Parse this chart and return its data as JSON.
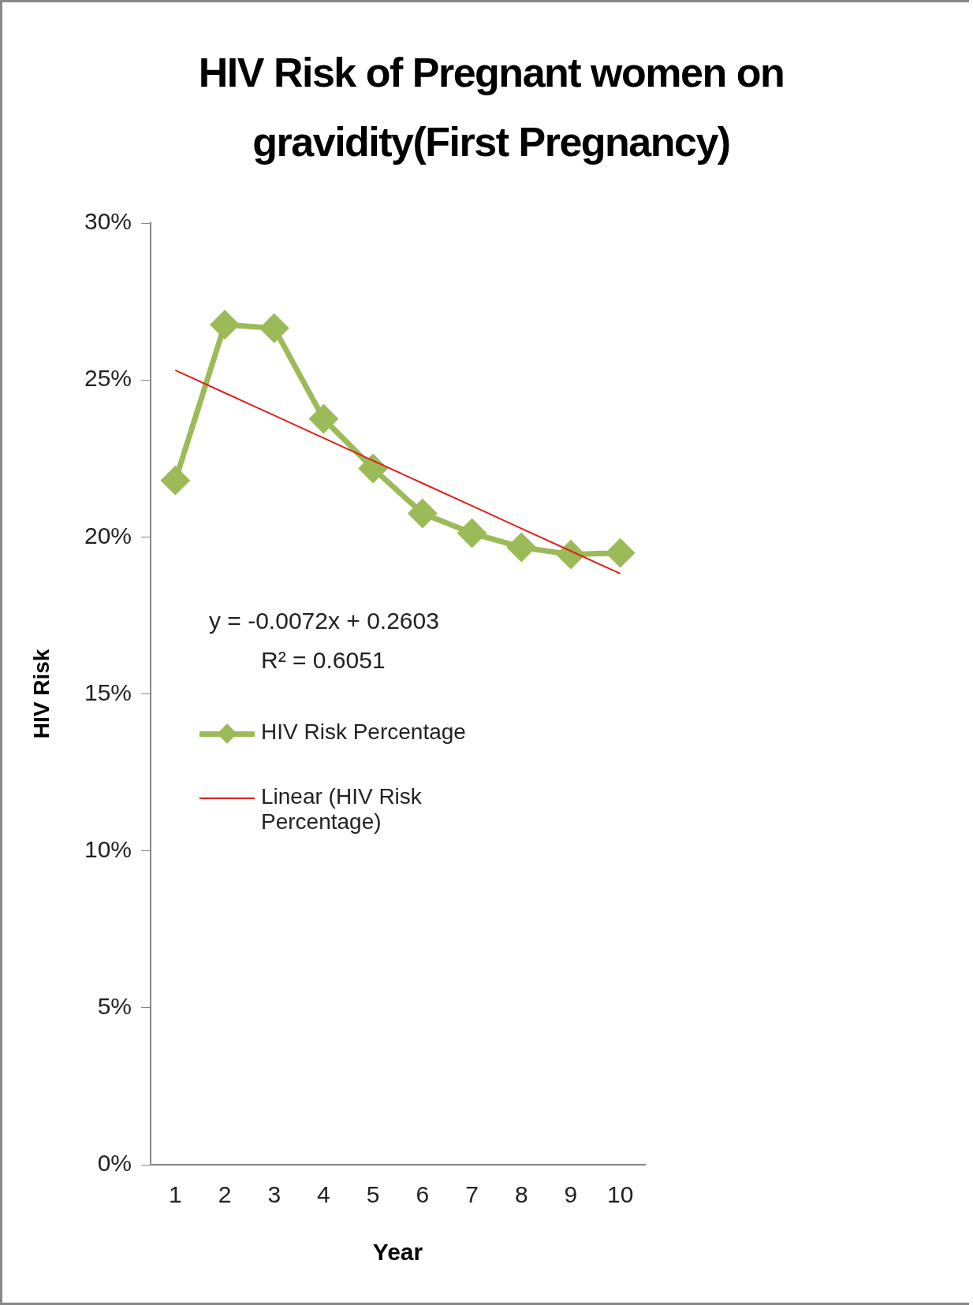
{
  "chart_data": {
    "type": "line",
    "title": "HIV Risk of Pregnant women on gravidity(First Pregnancy)",
    "xlabel": "Year",
    "ylabel": "HIV Risk",
    "categories": [
      "1",
      "2",
      "3",
      "4",
      "5",
      "6",
      "7",
      "8",
      "9",
      "10"
    ],
    "series": [
      {
        "name": "HIV Risk Percentage",
        "color": "#9bbb59",
        "marker": "diamond",
        "values": [
          21.8,
          26.76,
          26.65,
          23.76,
          22.18,
          20.75,
          20.12,
          19.67,
          19.44,
          19.49
        ]
      },
      {
        "name": "Linear (HIV Risk Percentage)",
        "type": "line",
        "color": "#e0201b",
        "marker": "none",
        "values": [
          25.31,
          24.59,
          23.87,
          23.15,
          22.43,
          21.71,
          20.99,
          20.27,
          19.55,
          18.83
        ]
      }
    ],
    "ylim": [
      0,
      30
    ],
    "yticks": [
      {
        "value": 0,
        "label": "0%"
      },
      {
        "value": 5,
        "label": "5%"
      },
      {
        "value": 10,
        "label": "10%"
      },
      {
        "value": 15,
        "label": "15%"
      },
      {
        "value": 20,
        "label": "20%"
      },
      {
        "value": 25,
        "label": "25%"
      },
      {
        "value": 30,
        "label": "30%"
      }
    ],
    "annotations": [
      "y = -0.0072x + 0.2603",
      "R² = 0.6051"
    ],
    "grid": false,
    "legend": "left"
  }
}
